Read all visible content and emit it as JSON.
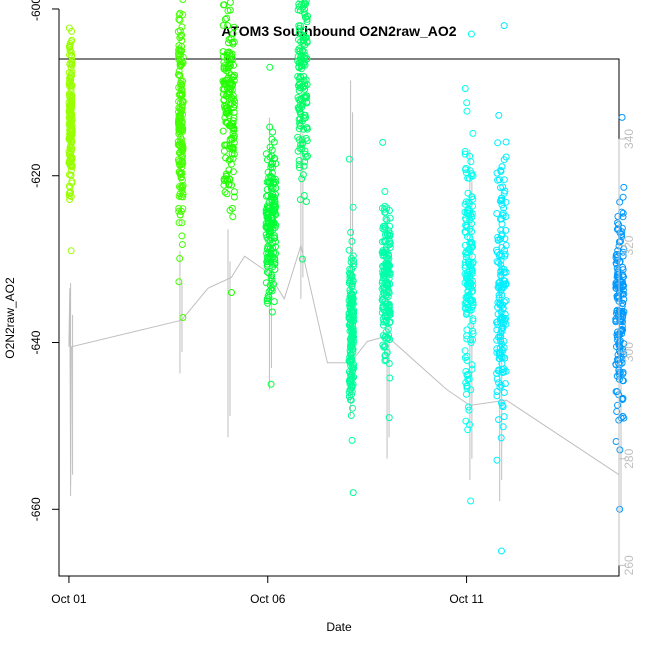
{
  "chart_data": {
    "type": "scatter",
    "title": "ATOM3 Southbound O2N2raw_AO2",
    "xlabel": "Date",
    "ylabel": "O2N2raw_AO2",
    "xlim": [
      "2015-09-30T18:00",
      "2015-10-14T20:00"
    ],
    "ylim": [
      -668,
      -606
    ],
    "x_ticks": [
      {
        "at": "2015-10-01T00:00",
        "label": "Oct 01"
      },
      {
        "at": "2015-10-06T00:00",
        "label": "Oct 06"
      },
      {
        "at": "2015-10-11T00:00",
        "label": "Oct 11"
      }
    ],
    "y_ticks": [
      {
        "at": -600,
        "label": "-600"
      },
      {
        "at": -620,
        "label": "-620"
      },
      {
        "at": -640,
        "label": "-640"
      },
      {
        "at": -660,
        "label": "-660"
      }
    ],
    "secondary_axis": {
      "side": "right",
      "color": "#bfbfbf",
      "ylim": [
        258,
        355
      ],
      "ticks": [
        {
          "at": 260,
          "label": "260"
        },
        {
          "at": 280,
          "label": "280"
        },
        {
          "at": 300,
          "label": "300"
        },
        {
          "at": 320,
          "label": "320"
        },
        {
          "at": 340,
          "label": "340"
        }
      ]
    },
    "grid": false,
    "marker": "open-circle",
    "series": [
      {
        "start": "2015-10-01T00:00",
        "end": "2015-10-01T02:00",
        "y_min": -629,
        "y_max": -597,
        "color": "#99ff00"
      },
      {
        "start": "2015-10-03T18:00",
        "end": "2015-10-03T21:00",
        "y_min": -637,
        "y_max": -590,
        "color": "#44ff00"
      },
      {
        "start": "2015-10-04T21:00",
        "end": "2015-10-05T04:00",
        "y_min": -634,
        "y_max": -589,
        "color": "#22ff00"
      },
      {
        "start": "2015-10-05T23:00",
        "end": "2015-10-06T05:00",
        "y_min": -645,
        "y_max": -607,
        "color": "#00ff33"
      },
      {
        "start": "2015-10-06T18:00",
        "end": "2015-10-07T00:00",
        "y_min": -630,
        "y_max": -585,
        "color": "#00ff66"
      },
      {
        "start": "2015-10-08T01:00",
        "end": "2015-10-08T04:00",
        "y_min": -658,
        "y_max": -618,
        "color": "#00ff99"
      },
      {
        "start": "2015-10-08T21:00",
        "end": "2015-10-09T02:00",
        "y_min": -649,
        "y_max": -616,
        "color": "#00ffaa"
      },
      {
        "start": "2015-10-10T23:00",
        "end": "2015-10-11T04:00",
        "y_min": -659,
        "y_max": -603,
        "color": "#00ffee"
      },
      {
        "start": "2015-10-11T18:00",
        "end": "2015-10-12T00:00",
        "y_min": -665,
        "y_max": -602,
        "color": "#00eeff"
      },
      {
        "start": "2015-10-14T18:00",
        "end": "2015-10-14T23:00",
        "y_min": -660,
        "y_max": -613,
        "color": "#0099ff"
      }
    ],
    "secondary_series": {
      "color": "#bfbfbf",
      "line": [
        [
          "2015-10-01T00:00",
          301
        ],
        [
          "2015-10-01T00:30",
          312
        ],
        [
          "2015-10-01T01:00",
          275
        ],
        [
          "2015-10-01T01:30",
          301
        ],
        [
          "2015-10-03T20:00",
          306
        ],
        [
          "2015-10-04T12:00",
          312
        ],
        [
          "2015-10-05T02:00",
          314
        ],
        [
          "2015-10-05T10:00",
          318
        ],
        [
          "2015-10-06T00:00",
          315
        ],
        [
          "2015-10-06T10:00",
          310
        ],
        [
          "2015-10-06T20:00",
          320
        ],
        [
          "2015-10-07T12:00",
          298
        ],
        [
          "2015-10-08T02:00",
          298
        ],
        [
          "2015-10-08T12:00",
          302
        ],
        [
          "2015-10-09T00:00",
          303
        ],
        [
          "2015-10-10T12:00",
          293
        ],
        [
          "2015-10-11T02:00",
          290
        ],
        [
          "2015-10-12T00:00",
          291
        ],
        [
          "2015-10-14T20:00",
          277
        ]
      ],
      "spikes": [
        [
          "2015-10-01T01:00",
          273,
          313
        ],
        [
          "2015-10-03T19:00",
          296,
          319
        ],
        [
          "2015-10-05T00:00",
          284,
          323
        ],
        [
          "2015-10-06T01:00",
          293,
          344
        ],
        [
          "2015-10-06T20:00",
          310,
          347
        ],
        [
          "2015-10-08T02:00",
          288,
          351
        ],
        [
          "2015-10-09T00:00",
          280,
          325
        ],
        [
          "2015-10-11T02:00",
          276,
          338
        ],
        [
          "2015-10-11T20:00",
          272,
          323
        ],
        [
          "2015-10-14T20:00",
          266,
          300
        ]
      ]
    }
  }
}
